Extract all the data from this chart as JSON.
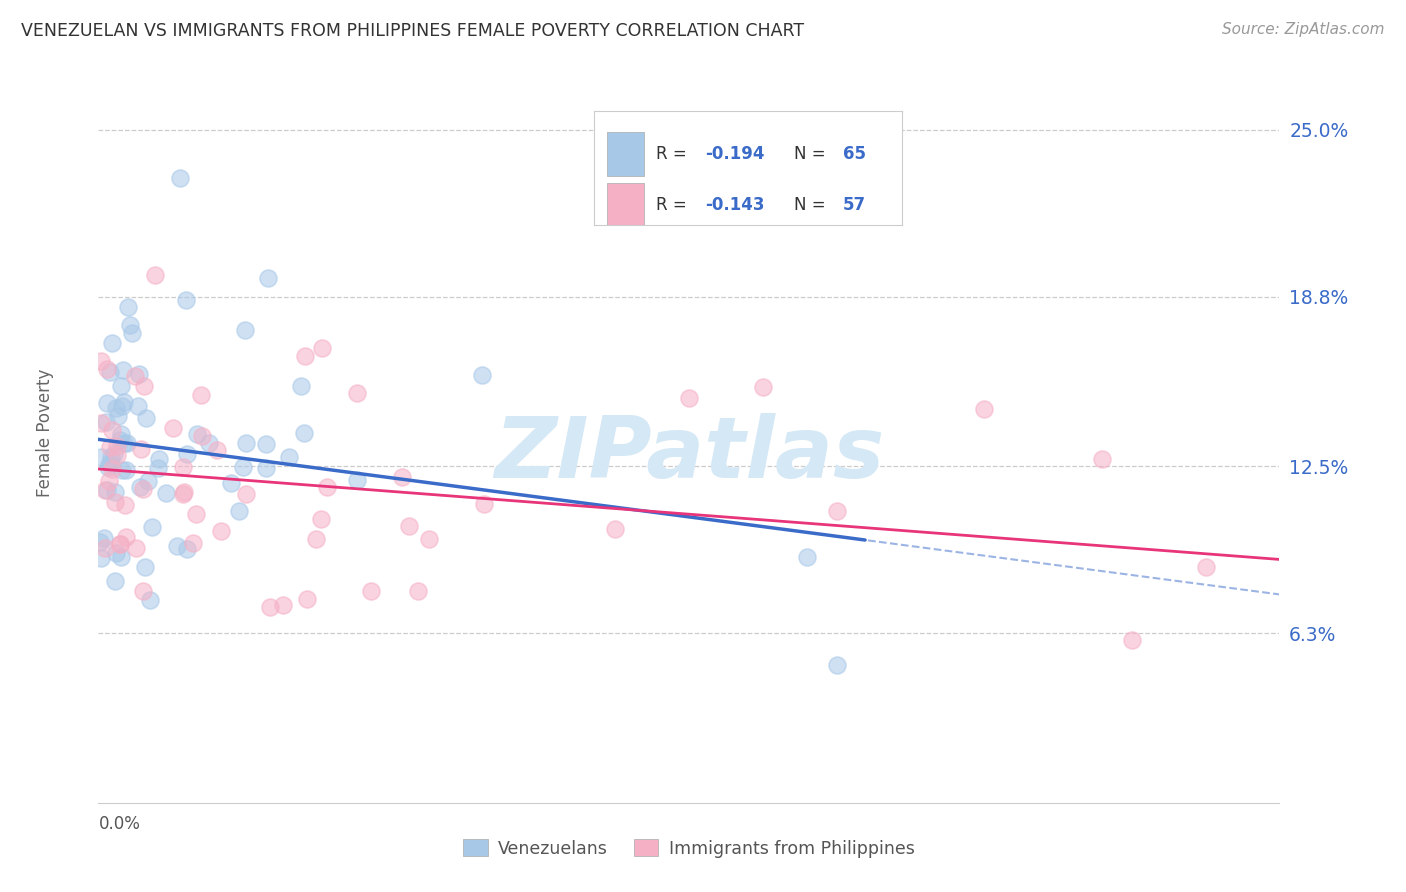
{
  "title": "VENEZUELAN VS IMMIGRANTS FROM PHILIPPINES FEMALE POVERTY CORRELATION CHART",
  "source": "Source: ZipAtlas.com",
  "ylabel": "Female Poverty",
  "yticks": [
    0.063,
    0.125,
    0.188,
    0.25
  ],
  "ytick_labels": [
    "6.3%",
    "12.5%",
    "18.8%",
    "25.0%"
  ],
  "xmin": 0.0,
  "xmax": 0.8,
  "ymin": 0.0,
  "ymax": 0.275,
  "legend_label_1": "Venezuelans",
  "legend_label_2": "Immigrants from Philippines",
  "r1": "-0.194",
  "n1": "65",
  "r2": "-0.143",
  "n2": "57",
  "blue_scatter_color": "#A8C8E8",
  "pink_scatter_color": "#F5B0C5",
  "blue_line_color": "#3B6BC8",
  "pink_line_color": "#E8357A",
  "blue_reg_intercept": 0.135,
  "blue_reg_slope": -0.072,
  "pink_reg_intercept": 0.124,
  "pink_reg_slope": -0.042,
  "background_color": "#FFFFFF",
  "grid_color": "#CCCCCC",
  "title_color": "#333333",
  "source_color": "#999999",
  "right_label_color": "#3B6BC8",
  "watermark_color": "#D5E8F5"
}
